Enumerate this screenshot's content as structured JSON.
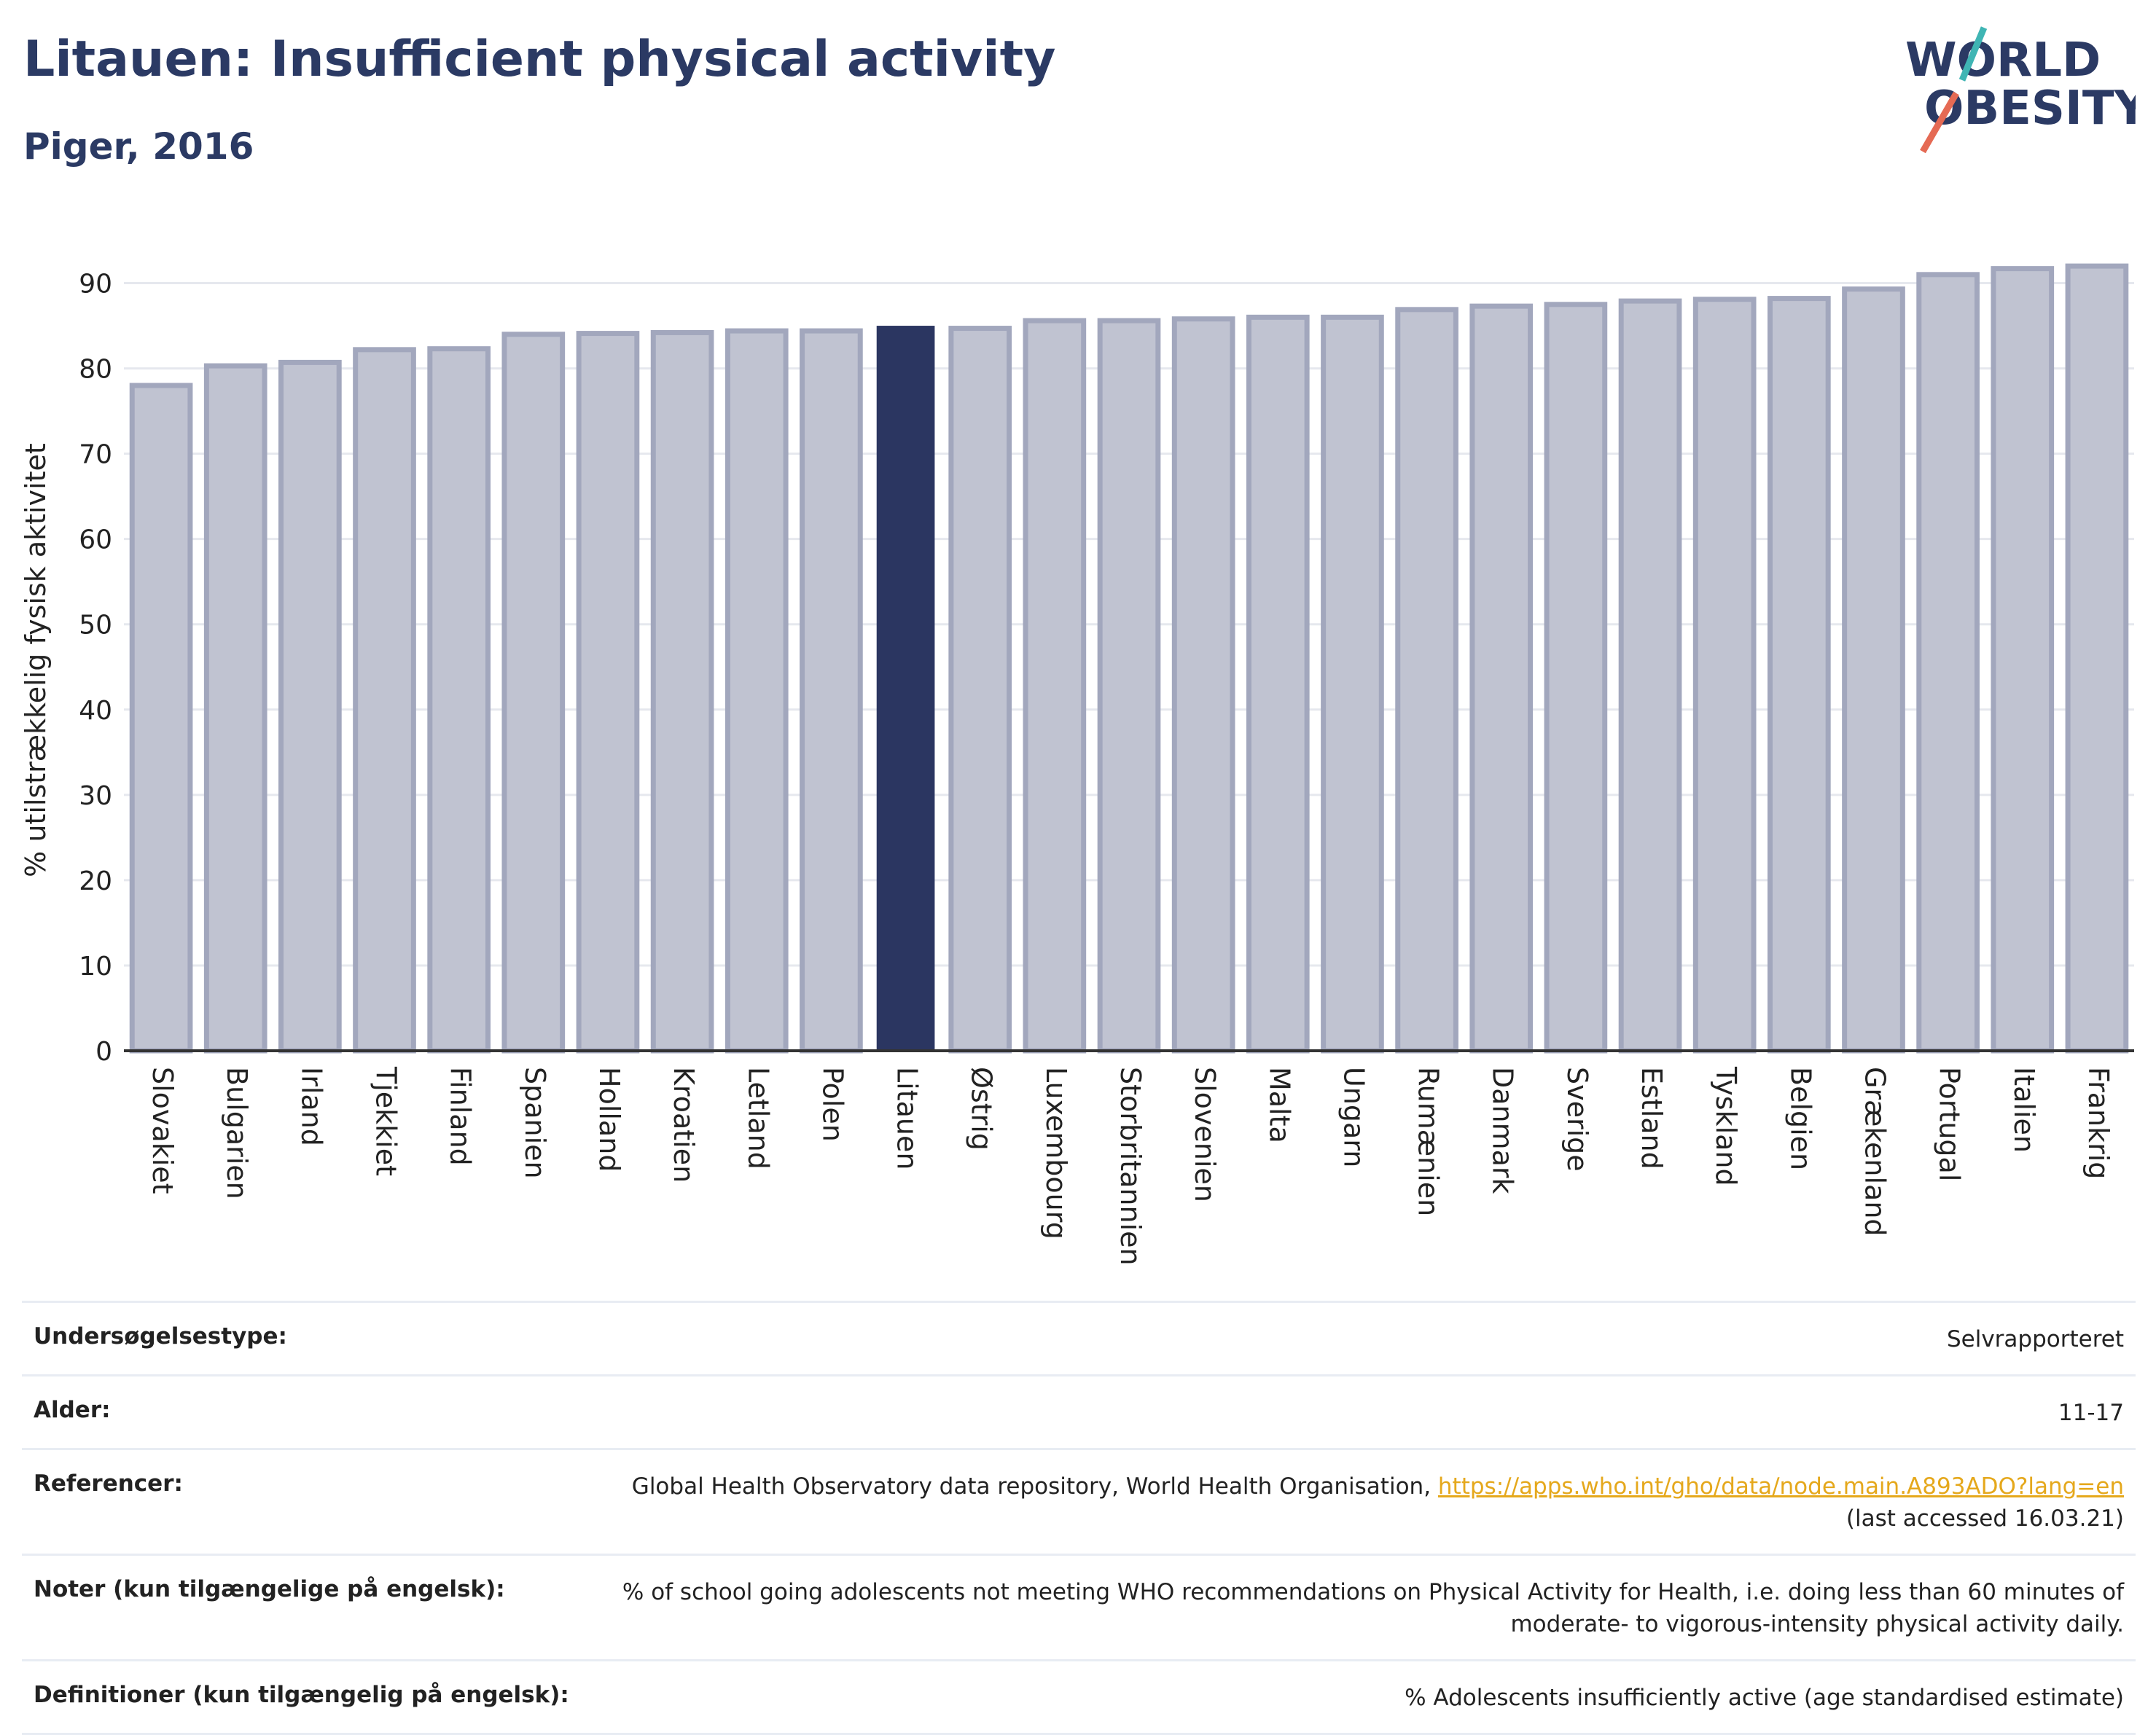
{
  "title": "Litauen: Insufficient physical activity",
  "subtitle": "Piger, 2016",
  "logo": {
    "line1": "WORLD",
    "line2": "OBESITY",
    "colors": {
      "text": "#2b3a64",
      "slash_top": "#3fb5b4",
      "slash_bottom": "#e56a54"
    }
  },
  "colors": {
    "bar": "#c0c3d1",
    "bar_stroke": "#a2a7bd",
    "highlight": "#2b3661",
    "grid": "#e6e8ee",
    "axis": "#333333",
    "link": "#e5a81c"
  },
  "chart_data": {
    "type": "bar",
    "ylabel": "% utilstrækkelig fysisk aktivitet",
    "xlabel": "",
    "ylim": [
      0,
      95
    ],
    "yticks": [
      0,
      10,
      20,
      30,
      40,
      50,
      60,
      70,
      80,
      90
    ],
    "grid": true,
    "highlight": "Litauen",
    "categories": [
      "Slovakiet",
      "Bulgarien",
      "Irland",
      "Tjekkiet",
      "Finland",
      "Spanien",
      "Holland",
      "Kroatien",
      "Letland",
      "Polen",
      "Litauen",
      "Østrig",
      "Luxembourg",
      "Storbritannien",
      "Slovenien",
      "Malta",
      "Ungarn",
      "Rumænien",
      "Danmark",
      "Sverige",
      "Estland",
      "Tyskland",
      "Belgien",
      "Grækenland",
      "Portugal",
      "Italien",
      "Frankrig"
    ],
    "values": [
      78.0,
      80.3,
      80.7,
      82.2,
      82.3,
      84.0,
      84.1,
      84.2,
      84.4,
      84.4,
      85.0,
      84.7,
      85.6,
      85.6,
      85.8,
      86.0,
      86.0,
      86.9,
      87.3,
      87.5,
      87.9,
      88.1,
      88.2,
      89.3,
      91.0,
      91.7,
      92.0
    ]
  },
  "meta": [
    {
      "label": "Undersøgelsestype:",
      "value": "Selvrapporteret"
    },
    {
      "label": "Alder:",
      "value": "11-17"
    },
    {
      "label": "Referencer:",
      "value": "Global Health Observatory data repository, World Health Organisation, ",
      "link": "https://apps.who.int/gho/data/node.main.A893ADO?lang=en",
      "value2": "(last accessed 16.03.21)"
    },
    {
      "label": "Noter (kun tilgængelige på engelsk):",
      "value": "% of school going adolescents not meeting WHO recommendations on Physical Activity for Health, i.e. doing less than 60 minutes of",
      "value2": "moderate- to vigorous-intensity physical activity daily."
    },
    {
      "label": "Definitioner (kun tilgængelig på engelsk):",
      "value": "% Adolescents insufficiently active (age standardised estimate)"
    }
  ]
}
